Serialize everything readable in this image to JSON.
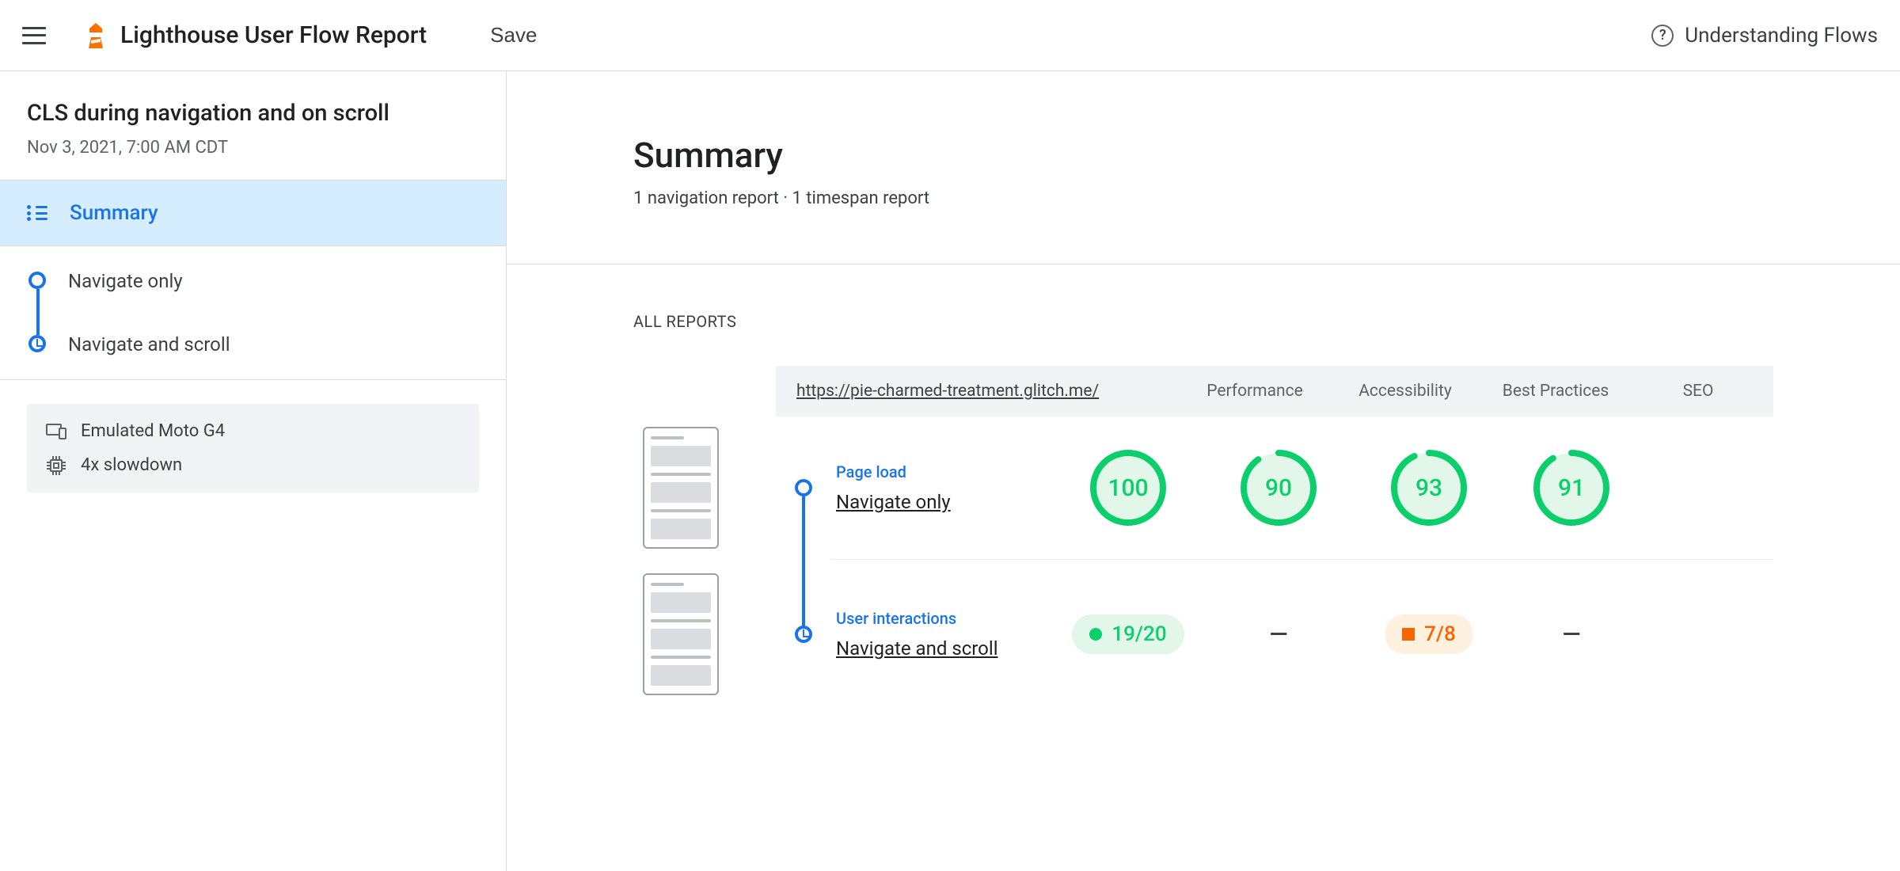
{
  "app": {
    "title": "Lighthouse User Flow Report",
    "save_label": "Save",
    "help_label": "Understanding Flows"
  },
  "sidebar": {
    "flow_title": "CLS during navigation and on scroll",
    "flow_date": "Nov 3, 2021, 7:00 AM CDT",
    "summary_label": "Summary",
    "steps": [
      {
        "label": "Navigate only",
        "mode": "navigation"
      },
      {
        "label": "Navigate and scroll",
        "mode": "timespan"
      }
    ],
    "env": {
      "device": "Emulated Moto G4",
      "cpu": "4x slowdown"
    }
  },
  "summary": {
    "title": "Summary",
    "subtitle": "1 navigation report · 1 timespan report"
  },
  "reports": {
    "section_label": "ALL REPORTS",
    "url": "https://pie-charmed-treatment.glitch.me/",
    "columns": {
      "performance": "Performance",
      "accessibility": "Accessibility",
      "best_practices": "Best Practices",
      "seo": "SEO"
    },
    "rows": [
      {
        "type_label": "Page load",
        "name": "Navigate only",
        "mode": "navigation",
        "scores": {
          "performance": {
            "kind": "gauge",
            "value": 100,
            "color": "#0cce6b",
            "bg": "#e3f6ea"
          },
          "accessibility": {
            "kind": "gauge",
            "value": 90,
            "color": "#0cce6b",
            "bg": "#e3f6ea"
          },
          "best_practices": {
            "kind": "gauge",
            "value": 93,
            "color": "#0cce6b",
            "bg": "#e3f6ea"
          },
          "seo": {
            "kind": "gauge",
            "value": 91,
            "color": "#0cce6b",
            "bg": "#e3f6ea"
          }
        }
      },
      {
        "type_label": "User interactions",
        "name": "Navigate and scroll",
        "mode": "timespan",
        "scores": {
          "performance": {
            "kind": "fraction",
            "text": "19/20",
            "level": "pass"
          },
          "accessibility": {
            "kind": "dash"
          },
          "best_practices": {
            "kind": "fraction",
            "text": "7/8",
            "level": "avg"
          },
          "seo": {
            "kind": "dash"
          }
        }
      }
    ]
  },
  "colors": {
    "primary": "#1a73e8",
    "pass": "#0cce6b",
    "average": "#fa6400",
    "pass_bg": "#e3f6ea",
    "avg_bg": "#fff1e0",
    "border": "#dadce0"
  }
}
